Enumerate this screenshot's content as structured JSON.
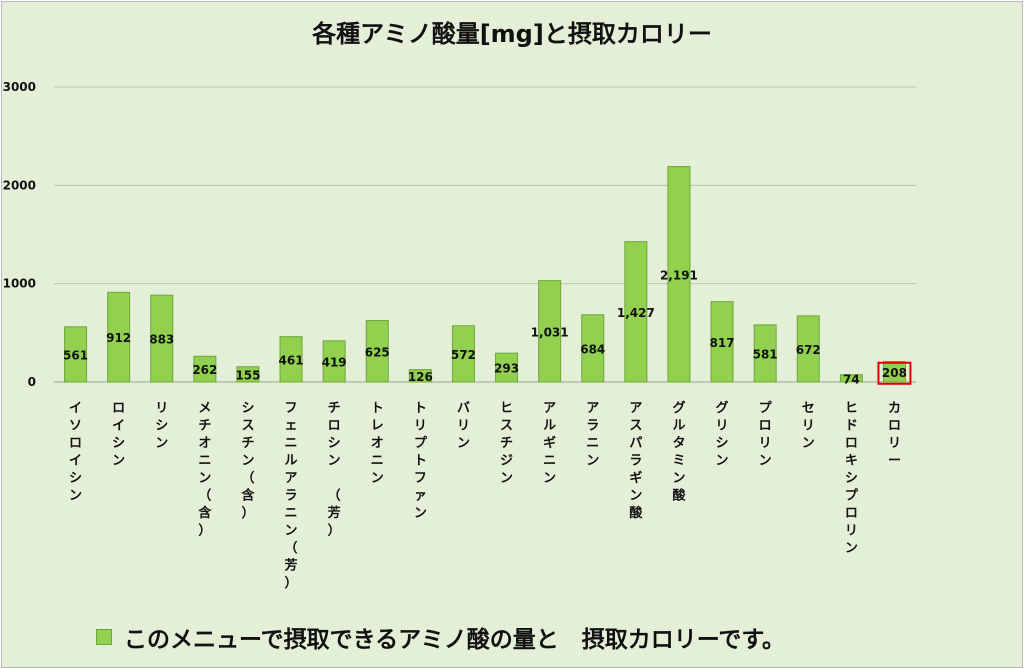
{
  "chart_data": {
    "type": "bar",
    "title": "各種アミノ酸量[mg]と摂取カロリー",
    "categories": [
      "イソロイシン",
      "ロイシン",
      "リシン",
      "メチオニン（含）",
      "シスチン（含）",
      "フェニルアラニン（芳）",
      "チロシン　（芳）",
      "トレオニン",
      "トリプトファン",
      "バリン",
      "ヒスチジン",
      "アルギニン",
      "アラニン",
      "アスパラギン酸",
      "グルタミン酸",
      "グリシン",
      "プロリン",
      "セリン",
      "ヒドロキシプロリン",
      "カロリー"
    ],
    "series": [
      {
        "name": "このメニューで摂取できるアミノ酸の量と　摂取カロリーです。",
        "values": [
          561,
          912,
          883,
          262,
          155,
          461,
          419,
          625,
          126,
          572,
          293,
          1031,
          684,
          1427,
          2191,
          817,
          581,
          672,
          74,
          208
        ],
        "value_labels": [
          "561",
          "912",
          "883",
          "262",
          "155",
          "461",
          "419",
          "625",
          "126",
          "572",
          "293",
          "1,031",
          "684",
          "1,427",
          "2,191",
          "817",
          "581",
          "672",
          "74",
          "208"
        ]
      }
    ],
    "highlight_index": 19,
    "ylim": [
      0,
      3000
    ],
    "yticks": [
      0,
      1000,
      2000,
      3000
    ],
    "ytick_labels": [
      "0",
      "1000",
      "2000",
      "3000"
    ],
    "grid": true,
    "legend_position": "bottom",
    "colors": {
      "bar": "#92d050",
      "bar_edge": "#6fa63a",
      "grid": "#b8c4ad",
      "highlight": "#e00000"
    }
  }
}
